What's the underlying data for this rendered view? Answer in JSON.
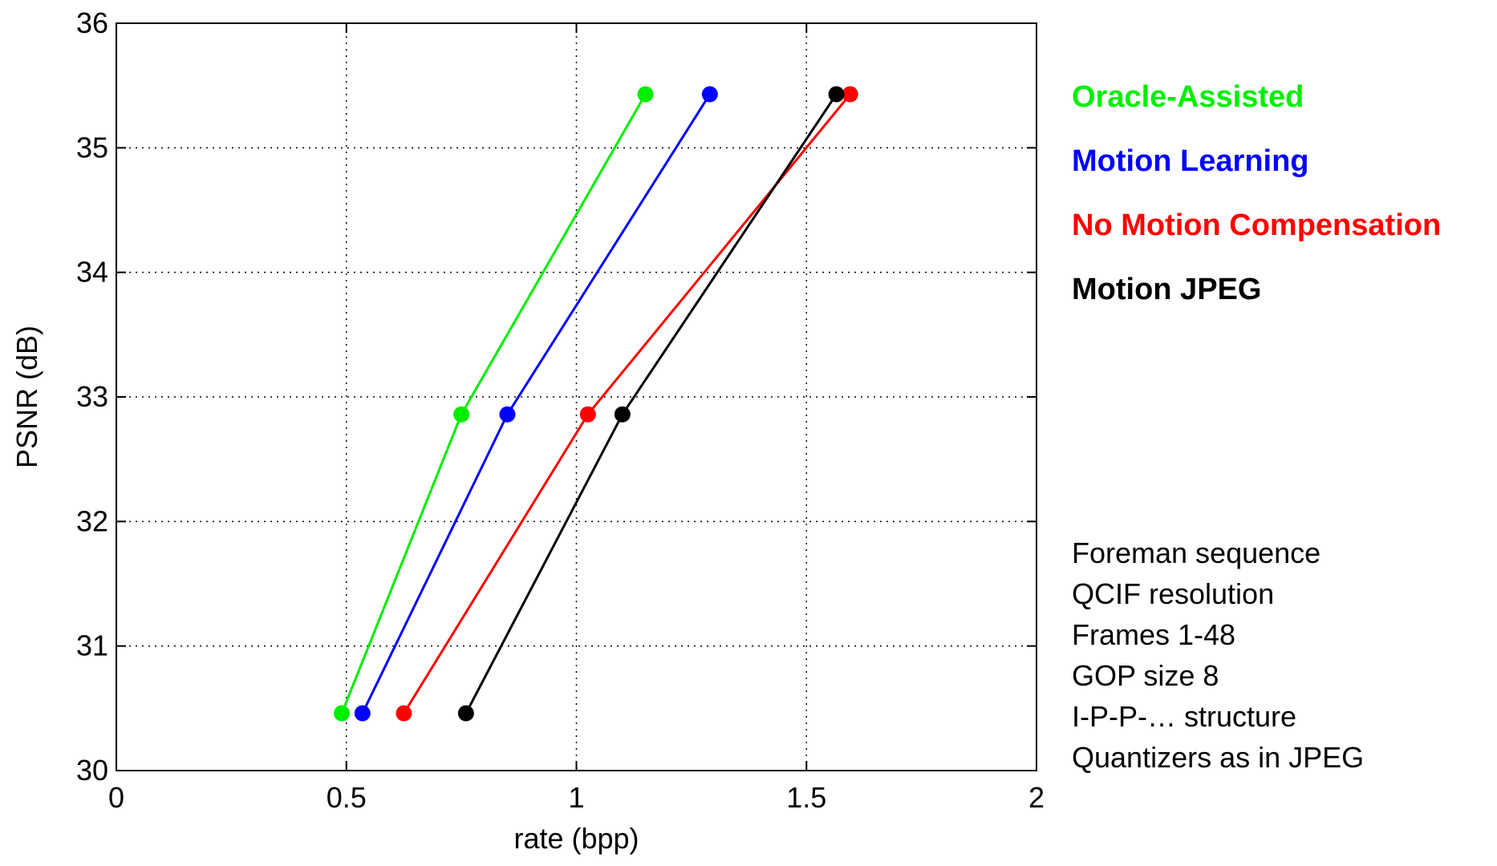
{
  "chart_data": {
    "type": "line",
    "xlabel": "rate (bpp)",
    "ylabel": "PSNR (dB)",
    "xlim": [
      0,
      2
    ],
    "ylim": [
      30,
      36
    ],
    "xticks": [
      0,
      0.5,
      1,
      1.5,
      2
    ],
    "xtick_labels": [
      "0",
      "0.5",
      "1",
      "1.5",
      "2"
    ],
    "yticks": [
      30,
      31,
      32,
      33,
      34,
      35,
      36
    ],
    "ytick_labels": [
      "30",
      "31",
      "32",
      "33",
      "34",
      "35",
      "36"
    ],
    "grid": true,
    "legend_position": "right",
    "series": [
      {
        "name": "Oracle-Assisted",
        "color": "#00ee00",
        "x": [
          0.49,
          0.75,
          1.15
        ],
        "y": [
          30.46,
          32.86,
          35.43
        ]
      },
      {
        "name": "Motion Learning",
        "color": "#0000ff",
        "x": [
          0.535,
          0.85,
          1.29
        ],
        "y": [
          30.46,
          32.86,
          35.43
        ]
      },
      {
        "name": "No Motion Compensation",
        "color": "#ff0000",
        "x": [
          0.625,
          1.025,
          1.595
        ],
        "y": [
          30.46,
          32.86,
          35.43
        ]
      },
      {
        "name": "Motion JPEG",
        "color": "#000000",
        "x": [
          0.76,
          1.1,
          1.565
        ],
        "y": [
          30.46,
          32.86,
          35.43
        ]
      }
    ],
    "annotations": [
      "Foreman sequence",
      "QCIF resolution",
      "Frames 1-48",
      "GOP size 8",
      "I-P-P-… structure",
      "Quantizers as in JPEG"
    ]
  }
}
